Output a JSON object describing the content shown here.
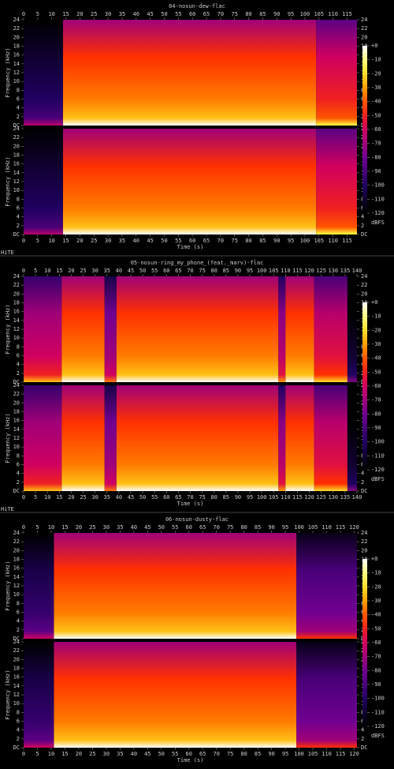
{
  "chart_data": [
    {
      "type": "spectrogram",
      "title": "04-nosun-dew-flac",
      "xlabel": "Time (s)",
      "ylabel": "Frequency (kHz)",
      "xlim": [
        0,
        118.5
      ],
      "xticks": [
        0,
        5,
        10,
        15,
        20,
        25,
        30,
        35,
        40,
        45,
        50,
        55,
        60,
        65,
        70,
        75,
        80,
        85,
        90,
        95,
        100,
        105,
        110,
        115
      ],
      "ylim": [
        0,
        24
      ],
      "yticks": [
        {
          "value": 0,
          "label": "DC"
        },
        2,
        4,
        6,
        8,
        10,
        12,
        14,
        16,
        18,
        20,
        22,
        24
      ],
      "clim": [
        -120,
        0
      ],
      "cticks": [
        {
          "value": 0,
          "label": "+0"
        },
        -10,
        -20,
        -30,
        -40,
        -50,
        -60,
        -70,
        -80,
        -90,
        -100,
        -110,
        -120
      ],
      "clabel": "dBFS",
      "sections": {
        "start": [
          0,
          14,
          104
        ],
        "end": [
          14,
          104,
          118.5
        ],
        "level": [
          -95,
          -30,
          -45
        ]
      },
      "watermark": "HiTE"
    },
    {
      "type": "spectrogram",
      "title": "05-nosun-ring_my_phone_(feat._marv)-flac",
      "xlabel": "Time (s)",
      "ylabel": "Frequency (kHz)",
      "xlim": [
        0,
        140
      ],
      "xticks": [
        0,
        5,
        10,
        15,
        20,
        25,
        30,
        35,
        40,
        45,
        50,
        55,
        60,
        65,
        70,
        75,
        80,
        85,
        90,
        95,
        100,
        105,
        110,
        115,
        120,
        125,
        130,
        135,
        140
      ],
      "ylim": [
        0,
        24
      ],
      "yticks": [
        {
          "value": 0,
          "label": "DC"
        },
        2,
        4,
        6,
        8,
        10,
        12,
        14,
        16,
        18,
        20,
        22,
        24
      ],
      "clim": [
        -120,
        0
      ],
      "cticks": [
        {
          "value": 0,
          "label": "+0"
        },
        -10,
        -20,
        -30,
        -40,
        -50,
        -60,
        -70,
        -80,
        -90,
        -100,
        -110,
        -120
      ],
      "clabel": "dBFS",
      "sections": {
        "start": [
          0,
          16,
          34,
          39,
          107,
          110,
          122,
          136
        ],
        "end": [
          16,
          34,
          39,
          107,
          110,
          122,
          136,
          140
        ],
        "level": [
          -55,
          -30,
          -65,
          -30,
          -60,
          -30,
          -50,
          -105
        ]
      },
      "watermark": "HiTE"
    },
    {
      "type": "spectrogram",
      "title": "06-nosun-dusty-flac",
      "xlabel": "Time (s)",
      "ylabel": "Frequency (kHz)",
      "xlim": [
        0,
        121
      ],
      "xticks": [
        0,
        5,
        10,
        15,
        20,
        25,
        30,
        35,
        40,
        45,
        50,
        55,
        60,
        65,
        70,
        75,
        80,
        85,
        90,
        95,
        100,
        105,
        110,
        115,
        120
      ],
      "ylim": [
        0,
        24
      ],
      "yticks": [
        {
          "value": 0,
          "label": "DC"
        },
        2,
        4,
        6,
        8,
        10,
        12,
        14,
        16,
        18,
        20,
        22,
        24
      ],
      "clim": [
        -120,
        0
      ],
      "cticks": [
        {
          "value": 0,
          "label": "+0"
        },
        -10,
        -20,
        -30,
        -40,
        -50,
        -60,
        -70,
        -80,
        -90,
        -100,
        -110,
        -120
      ],
      "clabel": "dBFS",
      "sections": {
        "start": [
          0,
          11,
          99
        ],
        "end": [
          11,
          99,
          121
        ],
        "level": [
          -90,
          -30,
          -75
        ]
      }
    }
  ]
}
